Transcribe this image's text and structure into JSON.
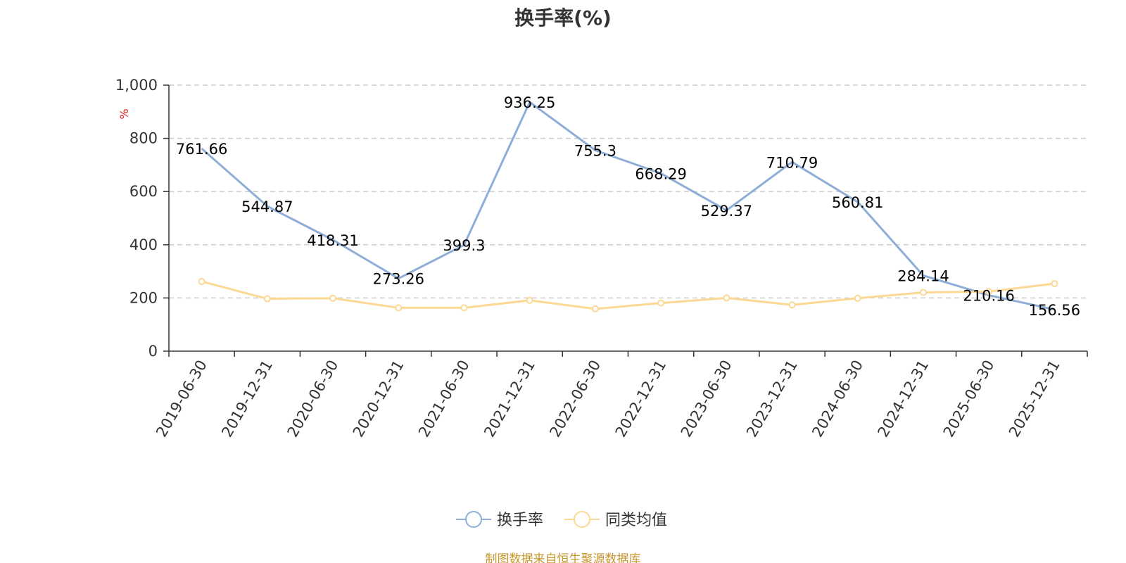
{
  "chart_data": {
    "type": "line",
    "title": "换手率(%)",
    "ylabel": "%",
    "xlabel": "",
    "ylim": [
      0,
      1000
    ],
    "yticks": [
      "0",
      "200",
      "400",
      "600",
      "800",
      "1,000"
    ],
    "categories": [
      "2019-06-30",
      "2019-12-31",
      "2020-06-30",
      "2020-12-31",
      "2021-06-30",
      "2021-12-31",
      "2022-06-30",
      "2022-12-31",
      "2023-06-30",
      "2023-12-31",
      "2024-06-30",
      "2024-12-31",
      "2025-06-30",
      "2025-12-31"
    ],
    "series": [
      {
        "name": "换手率",
        "color": "#8eaed8",
        "values": [
          761.66,
          544.87,
          418.31,
          273.26,
          399.3,
          936.25,
          755.3,
          668.29,
          529.37,
          710.79,
          560.81,
          284.14,
          210.16,
          156.56
        ],
        "labels": [
          "761.66",
          "544.87",
          "418.31",
          "273.26",
          "399.3",
          "936.25",
          "755.3",
          "668.29",
          "529.37",
          "710.79",
          "560.81",
          "284.14",
          "210.16",
          "156.56"
        ]
      },
      {
        "name": "同类均值",
        "color": "#fbd894",
        "values": [
          262,
          197,
          199,
          163,
          163,
          191,
          159,
          181,
          200,
          174,
          199,
          221,
          224,
          254
        ]
      }
    ],
    "grid": "horizontal-dashed",
    "legend_position": "bottom-center",
    "source": "制图数据来自恒生聚源数据库"
  }
}
